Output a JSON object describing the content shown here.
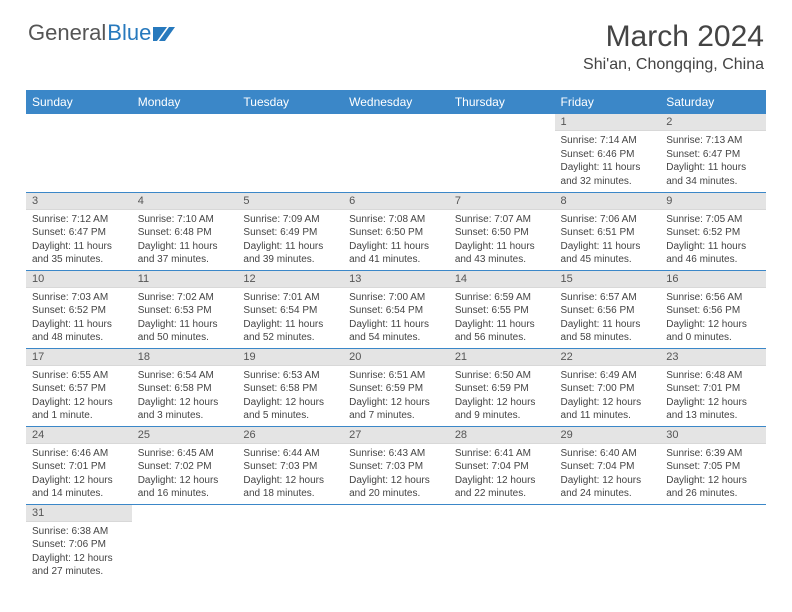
{
  "logo": {
    "part1": "General",
    "part2": "Blue"
  },
  "title": "March 2024",
  "location": "Shi'an, Chongqing, China",
  "headers": [
    "Sunday",
    "Monday",
    "Tuesday",
    "Wednesday",
    "Thursday",
    "Friday",
    "Saturday"
  ],
  "colors": {
    "header_bg": "#3b87c8",
    "header_text": "#ffffff",
    "daynum_bg": "#e4e4e4",
    "border": "#3b87c8",
    "logo_accent": "#2779bd"
  },
  "weeks": [
    [
      null,
      null,
      null,
      null,
      null,
      {
        "n": "1",
        "sr": "Sunrise: 7:14 AM",
        "ss": "Sunset: 6:46 PM",
        "dl": "Daylight: 11 hours and 32 minutes."
      },
      {
        "n": "2",
        "sr": "Sunrise: 7:13 AM",
        "ss": "Sunset: 6:47 PM",
        "dl": "Daylight: 11 hours and 34 minutes."
      }
    ],
    [
      {
        "n": "3",
        "sr": "Sunrise: 7:12 AM",
        "ss": "Sunset: 6:47 PM",
        "dl": "Daylight: 11 hours and 35 minutes."
      },
      {
        "n": "4",
        "sr": "Sunrise: 7:10 AM",
        "ss": "Sunset: 6:48 PM",
        "dl": "Daylight: 11 hours and 37 minutes."
      },
      {
        "n": "5",
        "sr": "Sunrise: 7:09 AM",
        "ss": "Sunset: 6:49 PM",
        "dl": "Daylight: 11 hours and 39 minutes."
      },
      {
        "n": "6",
        "sr": "Sunrise: 7:08 AM",
        "ss": "Sunset: 6:50 PM",
        "dl": "Daylight: 11 hours and 41 minutes."
      },
      {
        "n": "7",
        "sr": "Sunrise: 7:07 AM",
        "ss": "Sunset: 6:50 PM",
        "dl": "Daylight: 11 hours and 43 minutes."
      },
      {
        "n": "8",
        "sr": "Sunrise: 7:06 AM",
        "ss": "Sunset: 6:51 PM",
        "dl": "Daylight: 11 hours and 45 minutes."
      },
      {
        "n": "9",
        "sr": "Sunrise: 7:05 AM",
        "ss": "Sunset: 6:52 PM",
        "dl": "Daylight: 11 hours and 46 minutes."
      }
    ],
    [
      {
        "n": "10",
        "sr": "Sunrise: 7:03 AM",
        "ss": "Sunset: 6:52 PM",
        "dl": "Daylight: 11 hours and 48 minutes."
      },
      {
        "n": "11",
        "sr": "Sunrise: 7:02 AM",
        "ss": "Sunset: 6:53 PM",
        "dl": "Daylight: 11 hours and 50 minutes."
      },
      {
        "n": "12",
        "sr": "Sunrise: 7:01 AM",
        "ss": "Sunset: 6:54 PM",
        "dl": "Daylight: 11 hours and 52 minutes."
      },
      {
        "n": "13",
        "sr": "Sunrise: 7:00 AM",
        "ss": "Sunset: 6:54 PM",
        "dl": "Daylight: 11 hours and 54 minutes."
      },
      {
        "n": "14",
        "sr": "Sunrise: 6:59 AM",
        "ss": "Sunset: 6:55 PM",
        "dl": "Daylight: 11 hours and 56 minutes."
      },
      {
        "n": "15",
        "sr": "Sunrise: 6:57 AM",
        "ss": "Sunset: 6:56 PM",
        "dl": "Daylight: 11 hours and 58 minutes."
      },
      {
        "n": "16",
        "sr": "Sunrise: 6:56 AM",
        "ss": "Sunset: 6:56 PM",
        "dl": "Daylight: 12 hours and 0 minutes."
      }
    ],
    [
      {
        "n": "17",
        "sr": "Sunrise: 6:55 AM",
        "ss": "Sunset: 6:57 PM",
        "dl": "Daylight: 12 hours and 1 minute."
      },
      {
        "n": "18",
        "sr": "Sunrise: 6:54 AM",
        "ss": "Sunset: 6:58 PM",
        "dl": "Daylight: 12 hours and 3 minutes."
      },
      {
        "n": "19",
        "sr": "Sunrise: 6:53 AM",
        "ss": "Sunset: 6:58 PM",
        "dl": "Daylight: 12 hours and 5 minutes."
      },
      {
        "n": "20",
        "sr": "Sunrise: 6:51 AM",
        "ss": "Sunset: 6:59 PM",
        "dl": "Daylight: 12 hours and 7 minutes."
      },
      {
        "n": "21",
        "sr": "Sunrise: 6:50 AM",
        "ss": "Sunset: 6:59 PM",
        "dl": "Daylight: 12 hours and 9 minutes."
      },
      {
        "n": "22",
        "sr": "Sunrise: 6:49 AM",
        "ss": "Sunset: 7:00 PM",
        "dl": "Daylight: 12 hours and 11 minutes."
      },
      {
        "n": "23",
        "sr": "Sunrise: 6:48 AM",
        "ss": "Sunset: 7:01 PM",
        "dl": "Daylight: 12 hours and 13 minutes."
      }
    ],
    [
      {
        "n": "24",
        "sr": "Sunrise: 6:46 AM",
        "ss": "Sunset: 7:01 PM",
        "dl": "Daylight: 12 hours and 14 minutes."
      },
      {
        "n": "25",
        "sr": "Sunrise: 6:45 AM",
        "ss": "Sunset: 7:02 PM",
        "dl": "Daylight: 12 hours and 16 minutes."
      },
      {
        "n": "26",
        "sr": "Sunrise: 6:44 AM",
        "ss": "Sunset: 7:03 PM",
        "dl": "Daylight: 12 hours and 18 minutes."
      },
      {
        "n": "27",
        "sr": "Sunrise: 6:43 AM",
        "ss": "Sunset: 7:03 PM",
        "dl": "Daylight: 12 hours and 20 minutes."
      },
      {
        "n": "28",
        "sr": "Sunrise: 6:41 AM",
        "ss": "Sunset: 7:04 PM",
        "dl": "Daylight: 12 hours and 22 minutes."
      },
      {
        "n": "29",
        "sr": "Sunrise: 6:40 AM",
        "ss": "Sunset: 7:04 PM",
        "dl": "Daylight: 12 hours and 24 minutes."
      },
      {
        "n": "30",
        "sr": "Sunrise: 6:39 AM",
        "ss": "Sunset: 7:05 PM",
        "dl": "Daylight: 12 hours and 26 minutes."
      }
    ],
    [
      {
        "n": "31",
        "sr": "Sunrise: 6:38 AM",
        "ss": "Sunset: 7:06 PM",
        "dl": "Daylight: 12 hours and 27 minutes."
      },
      null,
      null,
      null,
      null,
      null,
      null
    ]
  ]
}
